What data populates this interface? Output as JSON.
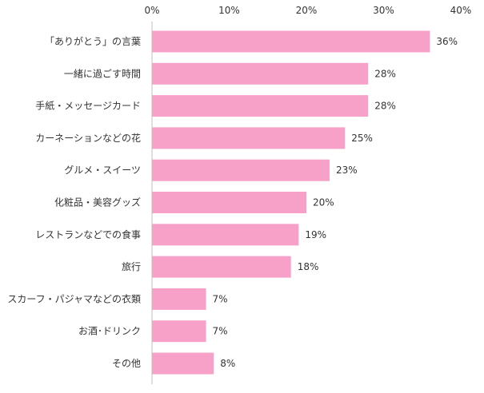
{
  "chart_data": {
    "type": "bar",
    "orientation": "horizontal",
    "categories": [
      "「ありがとう」の言葉",
      "一緒に過ごす時間",
      "手紙・メッセージカード",
      "カーネーションなどの花",
      "グルメ・スイーツ",
      "化粧品・美容グッズ",
      "レストランなどでの食事",
      "旅行",
      "スカーフ・パジャマなどの衣類",
      "お酒･ドリンク",
      "その他"
    ],
    "values": [
      36,
      28,
      28,
      25,
      23,
      20,
      19,
      18,
      7,
      7,
      8
    ],
    "value_labels": [
      "36%",
      "28%",
      "28%",
      "25%",
      "23%",
      "20%",
      "19%",
      "18%",
      "7%",
      "7%",
      "8%"
    ],
    "x_ticks": [
      0,
      10,
      20,
      30,
      40
    ],
    "x_tick_labels": [
      "0%",
      "10%",
      "20%",
      "30%",
      "40%"
    ],
    "xlim": [
      0,
      40
    ],
    "axis_position": "top",
    "grid": false,
    "legend": "none",
    "bar_color": "#F7A1C9",
    "axis_color": "#BFBFBF",
    "title": "",
    "xlabel": "",
    "ylabel": ""
  }
}
